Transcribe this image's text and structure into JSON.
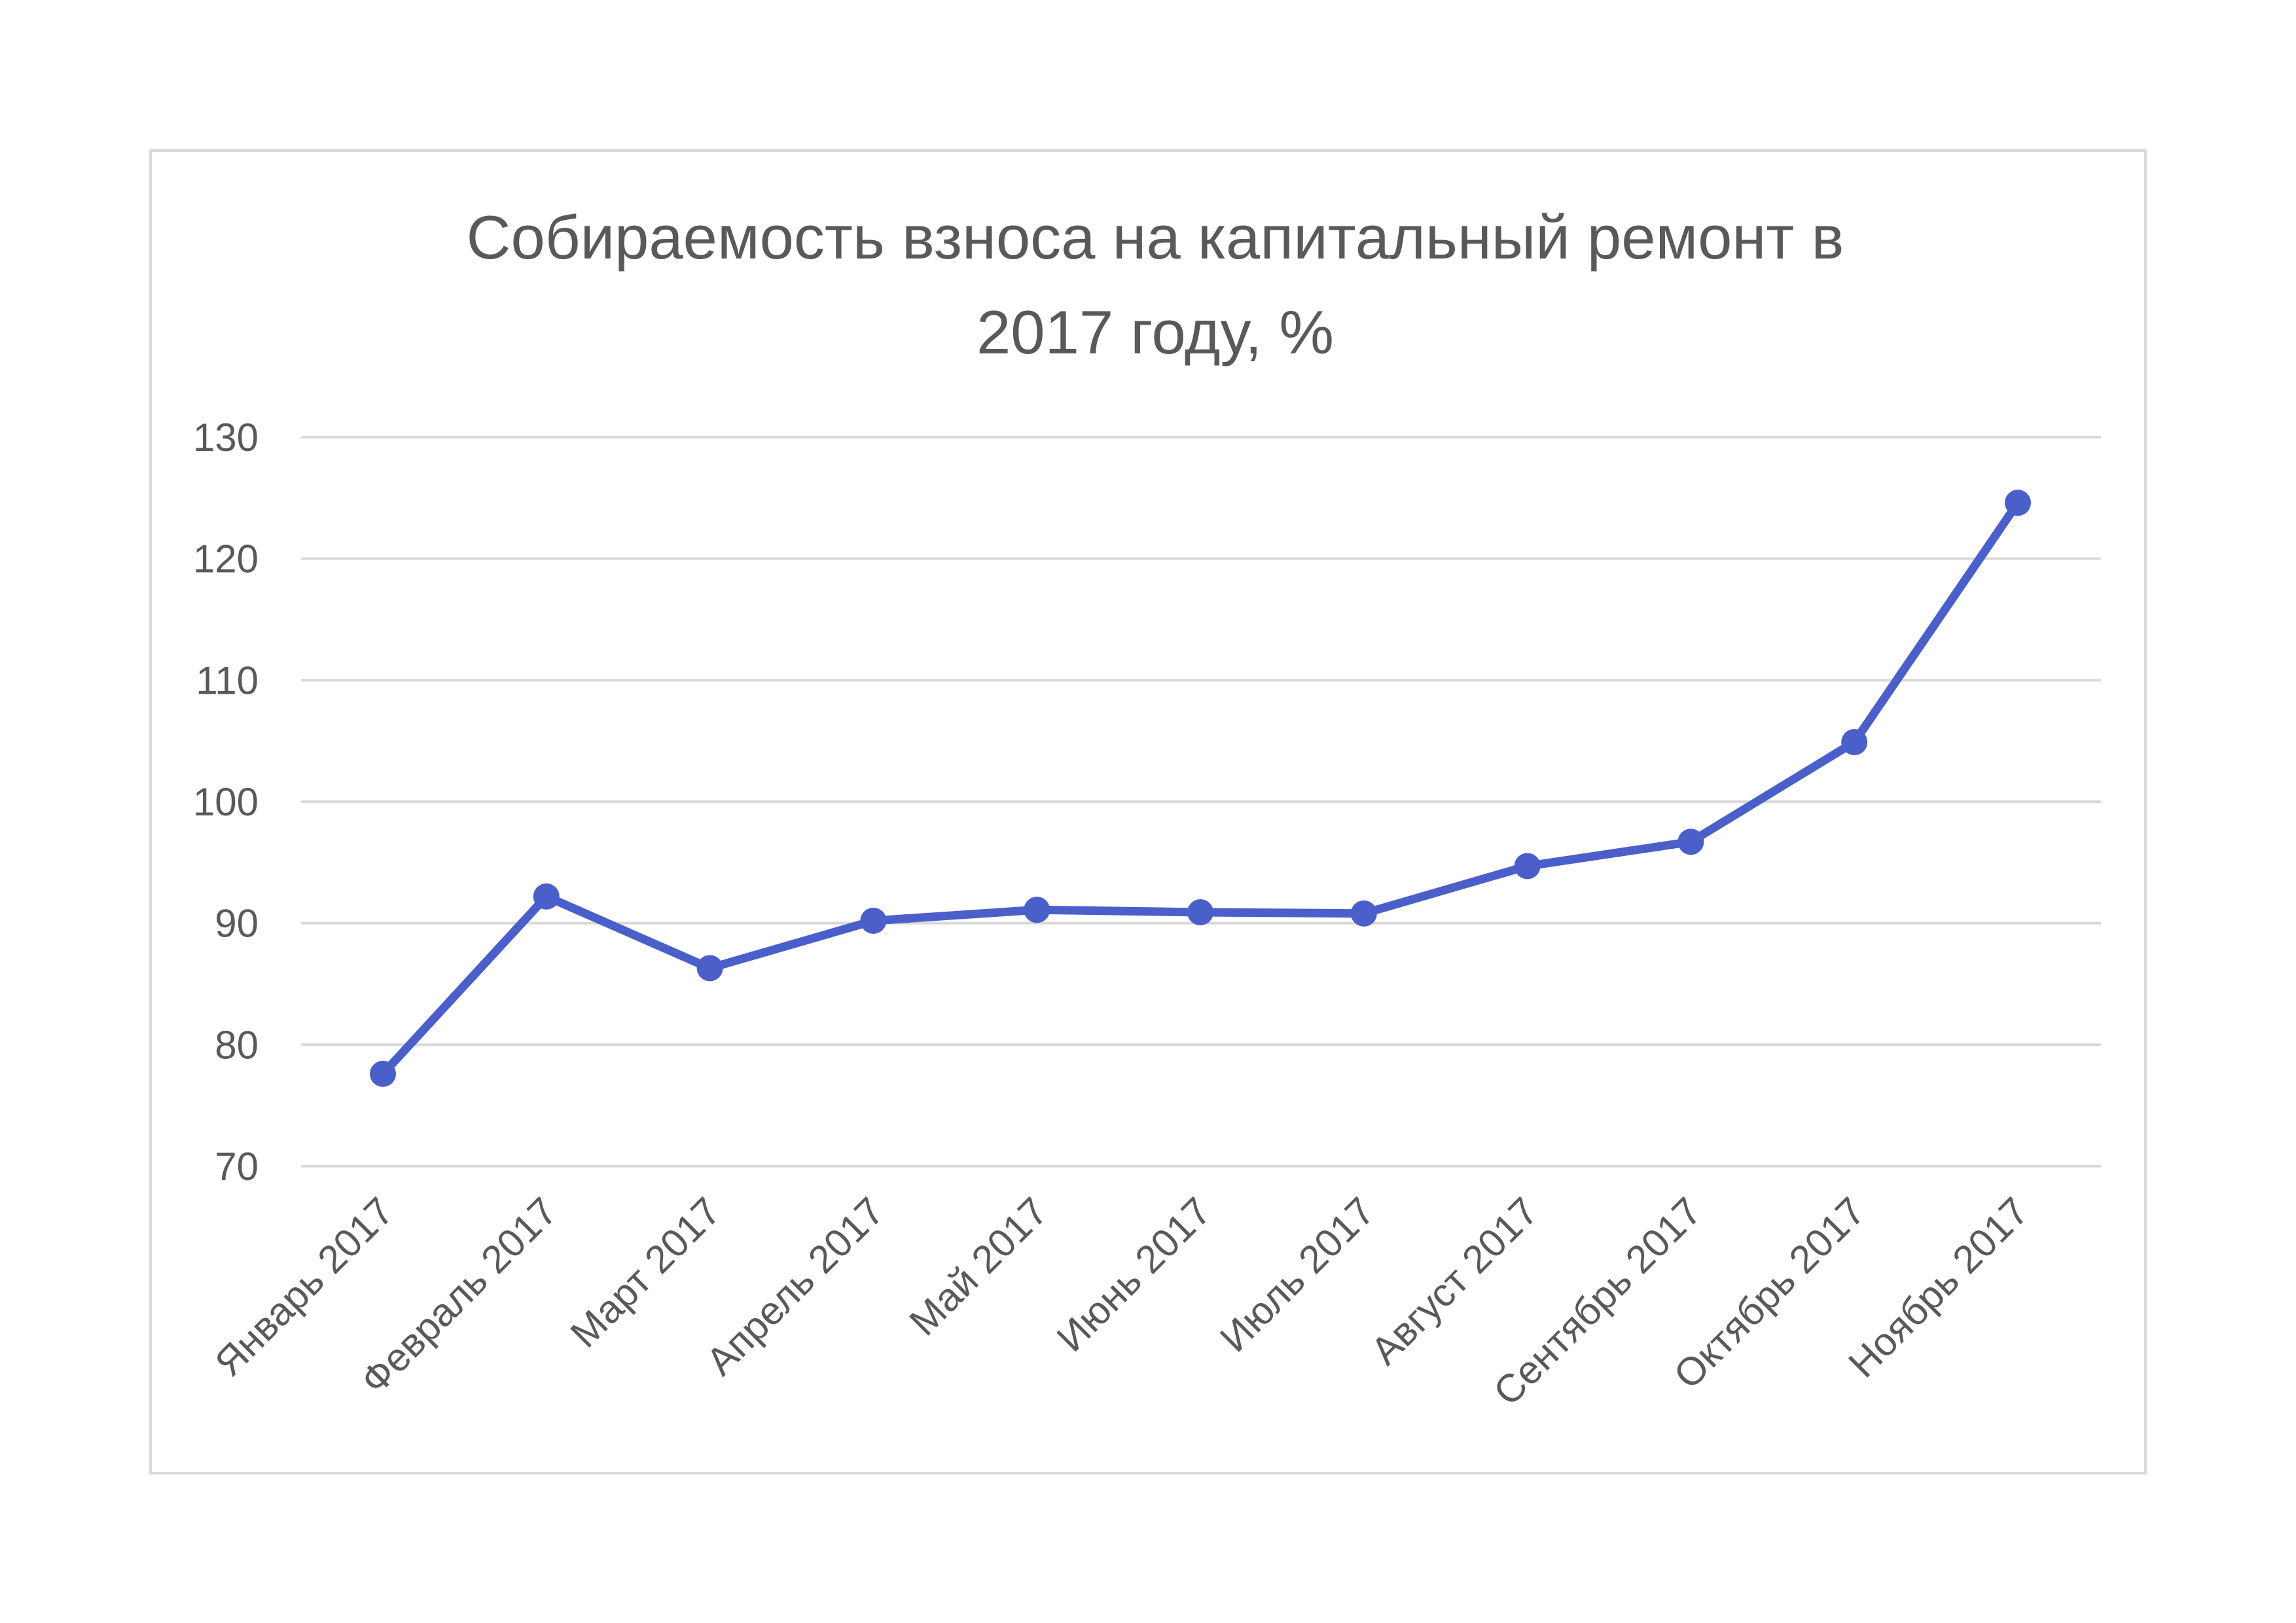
{
  "chart_data": {
    "type": "line",
    "title_lines": [
      "Собираемость взноса на капитальный ремонт в",
      "2017 году, %"
    ],
    "categories": [
      "Январь 2017",
      "Февраль 2017",
      "Март 2017",
      "Апрель 2017",
      "Май 2017",
      "Июнь 2017",
      "Июль 2017",
      "Август 2017",
      "Сентябрь 2017",
      "Октябрь 2017",
      "Ноябрь 2017"
    ],
    "series": [
      {
        "values": [
          77.6,
          92.2,
          86.3,
          90.2,
          91.1,
          90.9,
          90.8,
          94.7,
          96.7,
          104.9,
          124.6
        ]
      }
    ],
    "ylim": [
      70,
      130
    ],
    "yticks": [
      70,
      80,
      90,
      100,
      110,
      120,
      130
    ],
    "grid": true,
    "line_color": "#4a5fc9",
    "grid_color": "#d9d9d9"
  }
}
